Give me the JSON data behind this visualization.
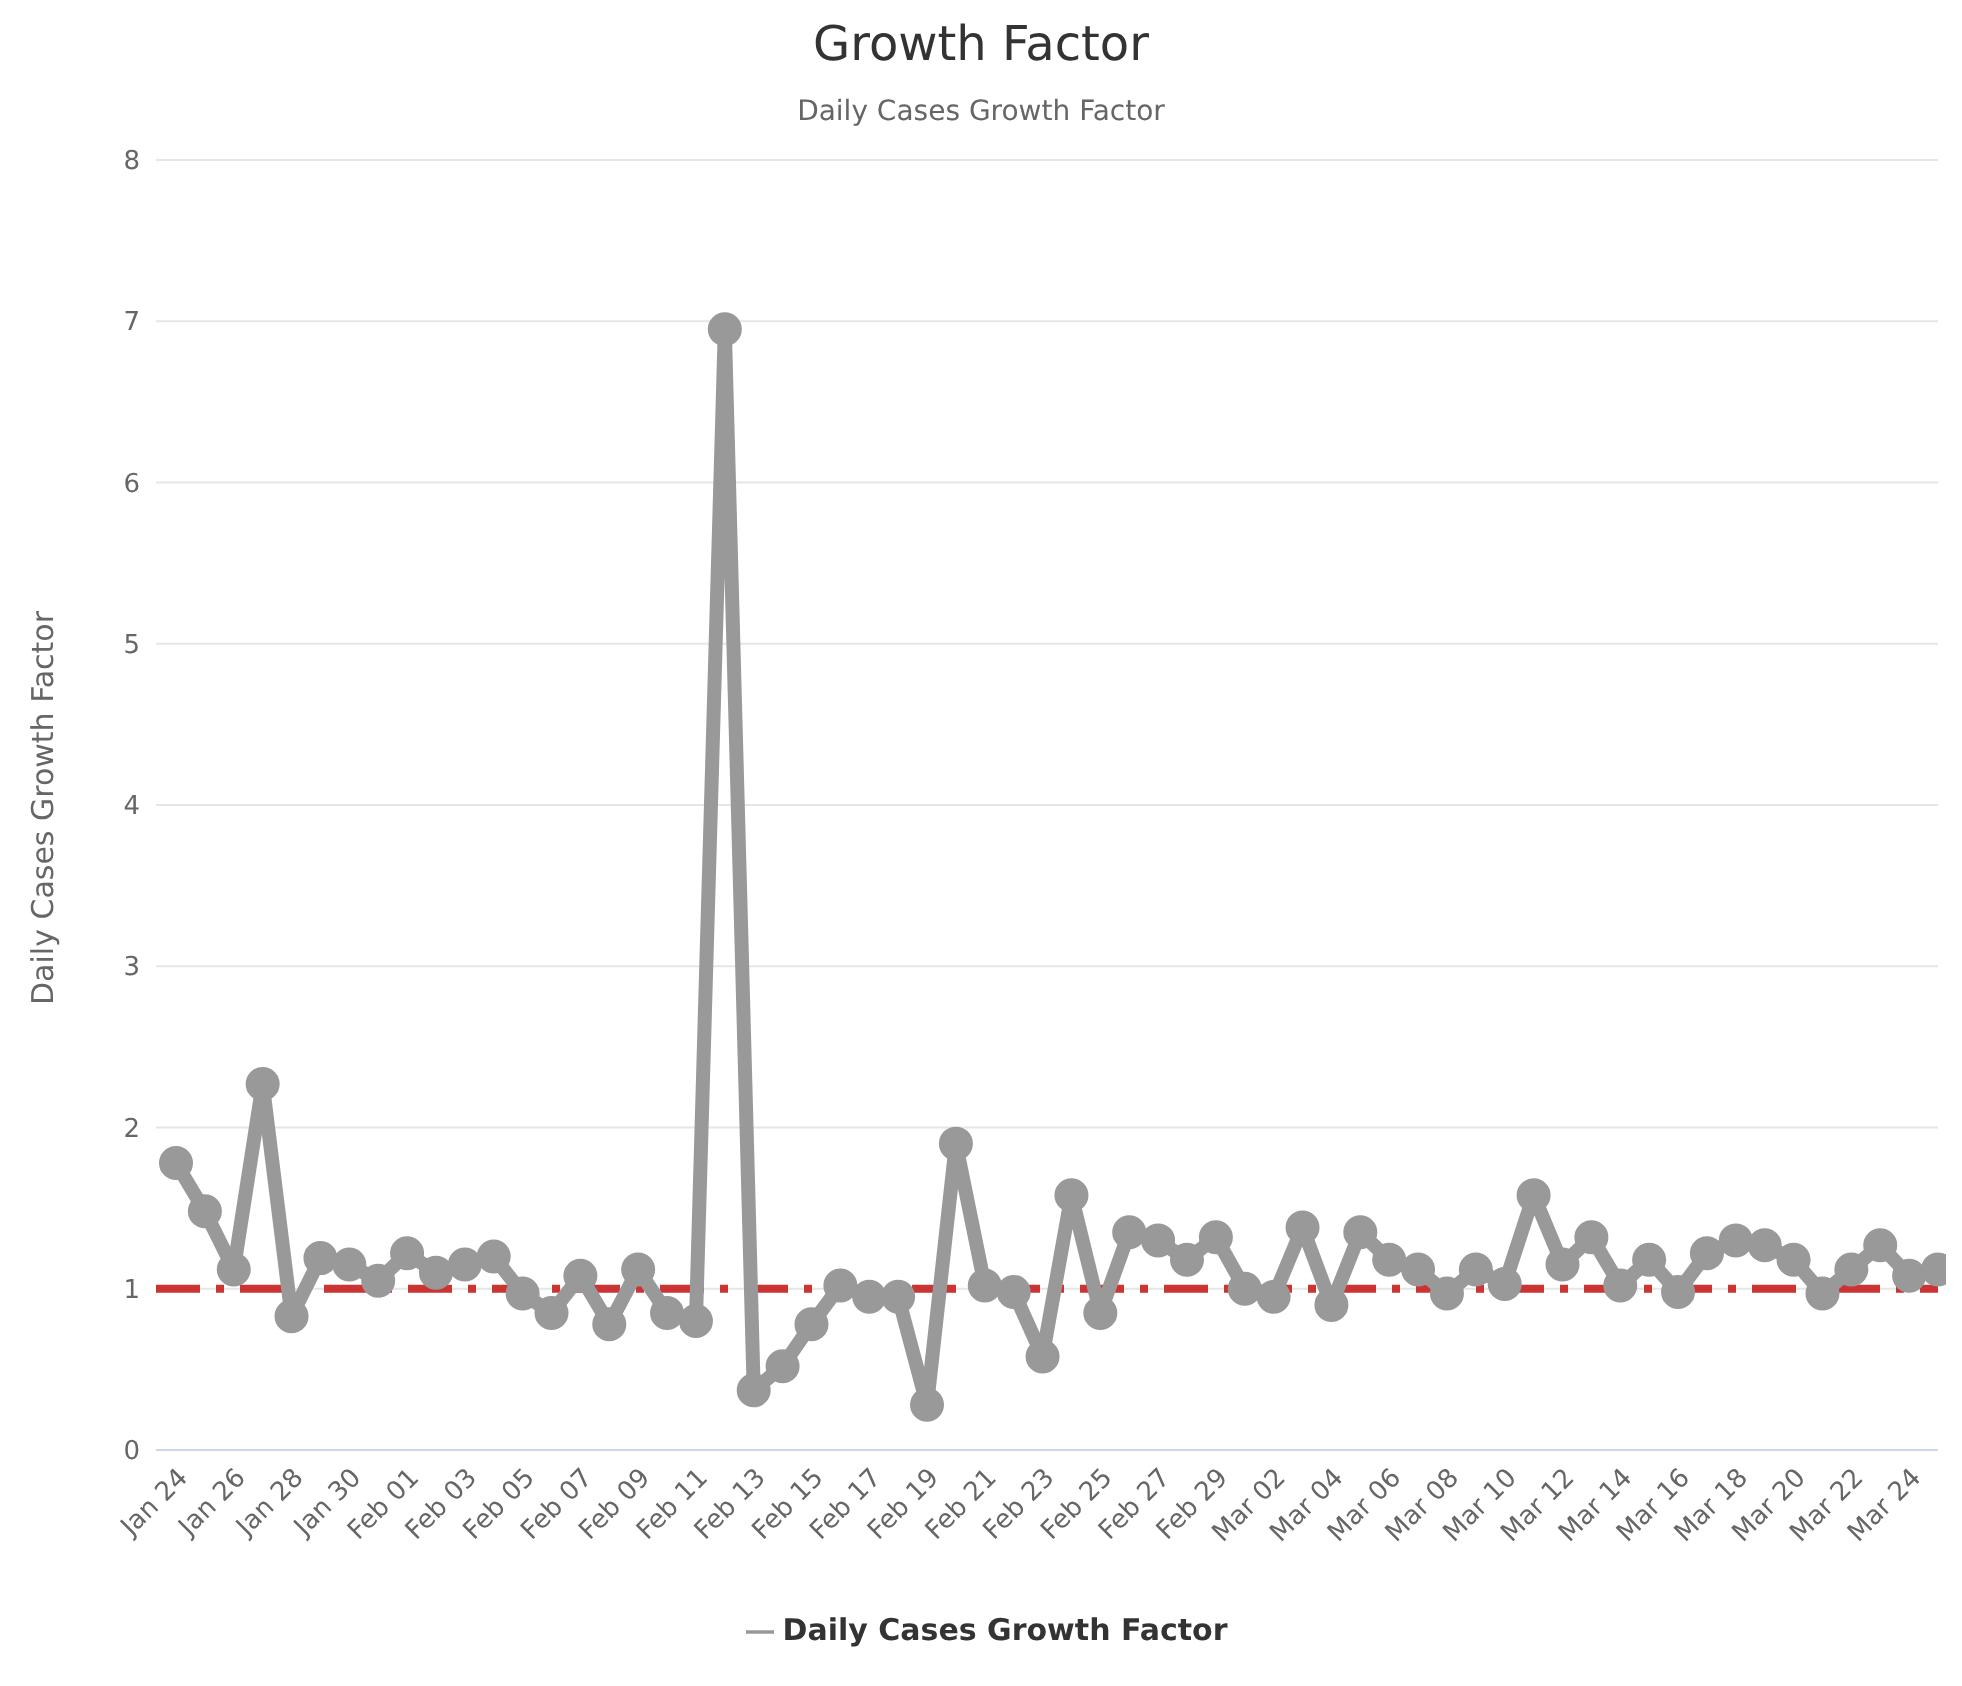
{
  "chart_data": {
    "type": "line",
    "title": "Growth Factor",
    "subtitle": "Daily Cases Growth Factor",
    "ylabel": "Daily Cases Growth Factor",
    "categories": [
      "Jan 24",
      null,
      "Jan 26",
      null,
      "Jan 28",
      null,
      "Jan 30",
      null,
      "Feb 01",
      null,
      "Feb 03",
      null,
      "Feb 05",
      null,
      "Feb 07",
      null,
      "Feb 09",
      null,
      "Feb 11",
      null,
      "Feb 13",
      null,
      "Feb 15",
      null,
      "Feb 17",
      null,
      "Feb 19",
      null,
      "Feb 21",
      null,
      "Feb 23",
      null,
      "Feb 25",
      null,
      "Feb 27",
      null,
      "Feb 29",
      null,
      "Mar 02",
      null,
      "Mar 04",
      null,
      "Mar 06",
      null,
      "Mar 08",
      null,
      "Mar 10",
      null,
      "Mar 12",
      null,
      "Mar 14",
      null,
      "Mar 16",
      null,
      "Mar 18",
      null,
      "Mar 20",
      null,
      "Mar 22",
      null,
      "Mar 24",
      null
    ],
    "series": [
      {
        "name": "Daily Cases Growth Factor",
        "color": "#999999",
        "values": [
          1.78,
          1.48,
          1.12,
          2.27,
          0.83,
          1.19,
          1.15,
          1.05,
          1.22,
          1.1,
          1.15,
          1.2,
          0.97,
          0.85,
          1.08,
          0.78,
          1.12,
          0.85,
          0.8,
          6.95,
          0.37,
          0.52,
          0.78,
          1.02,
          0.95,
          0.95,
          0.28,
          1.9,
          1.02,
          0.98,
          0.58,
          1.58,
          0.85,
          1.35,
          1.3,
          1.18,
          1.32,
          1.0,
          0.95,
          1.38,
          0.9,
          1.35,
          1.18,
          1.12,
          0.97,
          1.12,
          1.03,
          1.58,
          1.15,
          1.32,
          1.02,
          1.18,
          0.98,
          1.22,
          1.3,
          1.27,
          1.18,
          0.97,
          1.12,
          1.27,
          1.08,
          1.12
        ]
      }
    ],
    "ylim": [
      0,
      8
    ],
    "yticks": [
      0,
      1,
      2,
      3,
      4,
      5,
      6,
      7,
      8
    ],
    "grid": "y",
    "legend": "bottom",
    "marker": "circle",
    "line_style": "solid",
    "ref_lines": [
      {
        "axis": "y",
        "value": 1,
        "color": "#cc3333",
        "line_style": "dashdot"
      }
    ]
  }
}
